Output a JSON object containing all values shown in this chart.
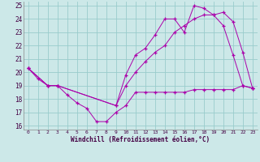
{
  "xlabel": "Windchill (Refroidissement éolien,°C)",
  "bg_color": "#cce8e8",
  "grid_color": "#99cccc",
  "line_color": "#aa00aa",
  "xlim": [
    -0.5,
    23.5
  ],
  "ylim": [
    15.7,
    25.3
  ],
  "yticks": [
    16,
    17,
    18,
    19,
    20,
    21,
    22,
    23,
    24,
    25
  ],
  "xticks": [
    0,
    1,
    2,
    3,
    4,
    5,
    6,
    7,
    8,
    9,
    10,
    11,
    12,
    13,
    14,
    15,
    16,
    17,
    18,
    19,
    20,
    21,
    22,
    23
  ],
  "series1_x": [
    0,
    1,
    2,
    3,
    4,
    5,
    6,
    7,
    8,
    9,
    10,
    11,
    12,
    13,
    14,
    15,
    16,
    17,
    18,
    19,
    20,
    21,
    22,
    23
  ],
  "series1_y": [
    20.3,
    19.5,
    19.0,
    19.0,
    18.3,
    17.7,
    17.3,
    16.3,
    16.3,
    17.0,
    17.5,
    18.5,
    18.5,
    18.5,
    18.5,
    18.5,
    18.5,
    18.7,
    18.7,
    18.7,
    18.7,
    18.7,
    19.0,
    18.8
  ],
  "series2_x": [
    0,
    2,
    3,
    9,
    10,
    11,
    12,
    13,
    14,
    15,
    16,
    17,
    18,
    19,
    20,
    21,
    22,
    23
  ],
  "series2_y": [
    20.3,
    19.0,
    19.0,
    17.5,
    19.8,
    21.3,
    21.8,
    22.8,
    24.0,
    24.0,
    23.0,
    25.0,
    24.8,
    24.3,
    23.5,
    21.3,
    19.0,
    18.8
  ],
  "series3_x": [
    0,
    2,
    3,
    9,
    10,
    11,
    12,
    13,
    14,
    15,
    16,
    17,
    18,
    19,
    20,
    21,
    22,
    23
  ],
  "series3_y": [
    20.3,
    19.0,
    19.0,
    17.5,
    19.0,
    20.0,
    20.8,
    21.5,
    22.0,
    23.0,
    23.5,
    24.0,
    24.3,
    24.3,
    24.5,
    23.8,
    21.5,
    18.8
  ]
}
